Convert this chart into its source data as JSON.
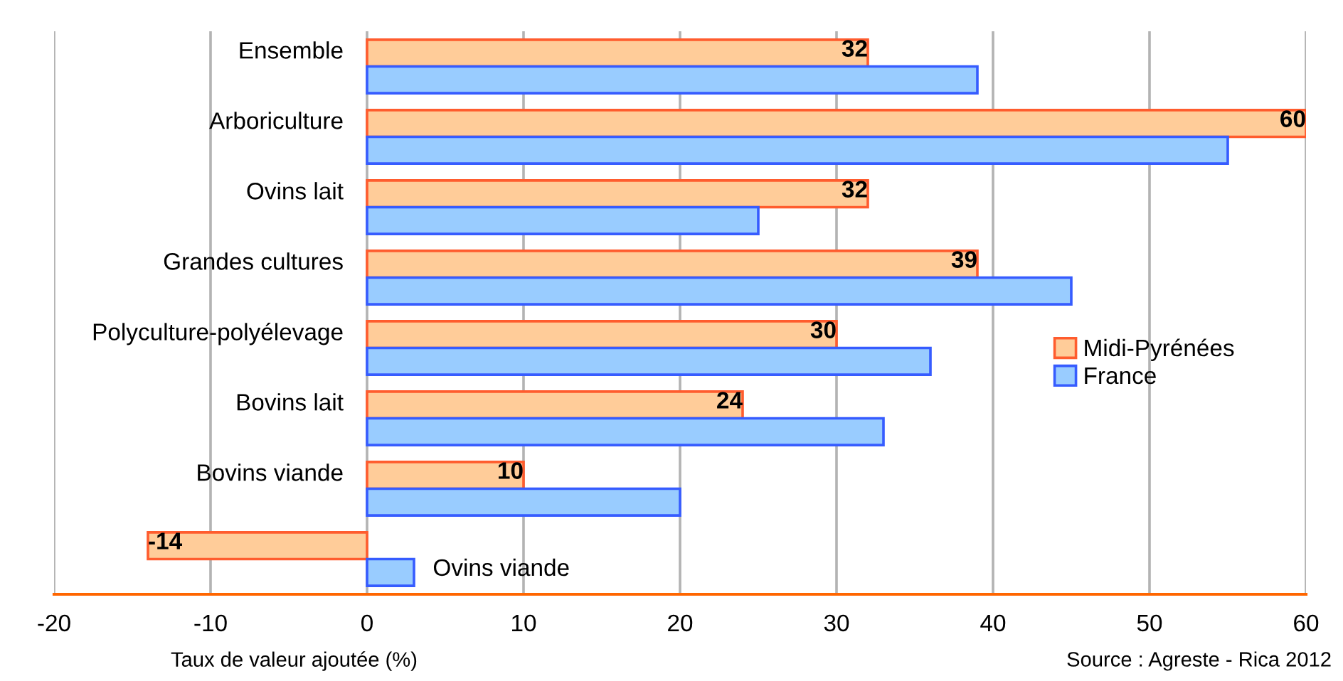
{
  "chart_data": {
    "type": "bar",
    "orientation": "horizontal",
    "categories": [
      "Ensemble",
      "Arboriculture",
      "Ovins lait",
      "Grandes cultures",
      "Polyculture-polyélevage",
      "Bovins lait",
      "Bovins viande",
      "Ovins viande"
    ],
    "series": [
      {
        "name": "Midi-Pyrénées",
        "color": "#ffcc99",
        "values": [
          32,
          60,
          32,
          39,
          30,
          24,
          10,
          -14
        ],
        "value_labels": [
          "32",
          "60",
          "32",
          "39",
          "30",
          "24",
          "10",
          "-14"
        ]
      },
      {
        "name": "France",
        "color": "#99ccff",
        "values": [
          39,
          55,
          25,
          45,
          36,
          33,
          20,
          3
        ]
      }
    ],
    "xlim": [
      -20,
      60
    ],
    "xticks": [
      -20,
      -10,
      0,
      10,
      20,
      30,
      40,
      50,
      60
    ],
    "xlabel": "Taux de valeur ajoutée (%)",
    "annotations": [
      "Source : Agreste - Rica 2012"
    ],
    "grid": "x",
    "legend": "right"
  }
}
